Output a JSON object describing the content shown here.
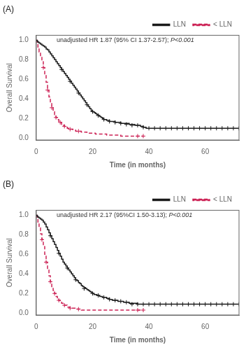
{
  "chart_data": [
    {
      "type": "step",
      "title": "(A)",
      "annotation": [
        "unadjusted HR 1.87 (95% CI 1.37-2.57); ",
        "P<0.001"
      ],
      "xlabel": "Time (in months)",
      "ylabel": "Overall Survival",
      "xlim": [
        0,
        72
      ],
      "ylim": [
        -0.02,
        1.05
      ],
      "xticks": [
        0,
        20,
        40,
        60
      ],
      "yticks": [
        {
          "value": 0,
          "label": "0.0"
        },
        0.2,
        0.4,
        0.6,
        0.8,
        {
          "value": 1,
          "label": "1.0"
        }
      ],
      "grid": false,
      "legend": "upper right",
      "series": [
        {
          "name": "LLN",
          "color": "#1a1a1a",
          "line_style": "solid",
          "x": [
            0,
            0.3,
            0.6,
            1,
            1.5,
            2,
            2.5,
            3,
            3.5,
            4,
            4.5,
            5,
            5.5,
            6,
            6.5,
            7,
            7.5,
            8,
            8.5,
            9,
            9.5,
            10,
            10.5,
            11,
            11.5,
            12,
            12.5,
            13,
            13.5,
            14,
            14.5,
            15,
            15.5,
            16,
            16.5,
            17,
            17.5,
            18,
            18.5,
            19,
            19.5,
            20,
            20.5,
            21,
            21.5,
            22,
            22.5,
            23,
            23.5,
            24,
            25,
            26,
            27,
            28,
            29,
            30,
            31,
            32,
            33,
            34,
            35,
            36,
            37,
            38,
            39,
            40,
            42,
            44,
            46,
            48,
            50,
            52,
            54,
            56,
            58,
            60,
            62,
            64,
            66,
            68,
            70,
            72
          ],
          "values": [
            1.0,
            0.99,
            0.98,
            0.97,
            0.96,
            0.95,
            0.94,
            0.93,
            0.91,
            0.9,
            0.88,
            0.86,
            0.84,
            0.82,
            0.8,
            0.78,
            0.76,
            0.74,
            0.72,
            0.7,
            0.68,
            0.66,
            0.64,
            0.62,
            0.6,
            0.58,
            0.56,
            0.54,
            0.52,
            0.5,
            0.48,
            0.46,
            0.44,
            0.42,
            0.4,
            0.38,
            0.36,
            0.34,
            0.32,
            0.3,
            0.28,
            0.27,
            0.26,
            0.25,
            0.24,
            0.23,
            0.22,
            0.21,
            0.2,
            0.19,
            0.18,
            0.17,
            0.17,
            0.16,
            0.16,
            0.15,
            0.15,
            0.15,
            0.14,
            0.14,
            0.13,
            0.13,
            0.12,
            0.11,
            0.1,
            0.1,
            0.1,
            0.1,
            0.1,
            0.1,
            0.1,
            0.1,
            0.1,
            0.1,
            0.1,
            0.1,
            0.1,
            0.1,
            0.1,
            0.1,
            0.1,
            0.1
          ]
        },
        {
          "name": "< LLN",
          "color": "#cc2255",
          "line_style": "dashed",
          "x": [
            0,
            0.3,
            0.6,
            1,
            1.5,
            2,
            2.5,
            3,
            3.5,
            4,
            4.5,
            5,
            5.5,
            6,
            6.5,
            7,
            7.5,
            8,
            8.5,
            9,
            9.5,
            10,
            11,
            12,
            13,
            14,
            15,
            16,
            17,
            18,
            19,
            20,
            21,
            22,
            23,
            24,
            25,
            26,
            27,
            28,
            29,
            30,
            31,
            32,
            33,
            34,
            35,
            36,
            37,
            38
          ],
          "values": [
            1.0,
            0.97,
            0.93,
            0.88,
            0.83,
            0.78,
            0.72,
            0.65,
            0.57,
            0.49,
            0.42,
            0.36,
            0.31,
            0.27,
            0.24,
            0.21,
            0.19,
            0.17,
            0.16,
            0.14,
            0.13,
            0.12,
            0.1,
            0.09,
            0.08,
            0.07,
            0.07,
            0.06,
            0.06,
            0.05,
            0.05,
            0.05,
            0.04,
            0.04,
            0.04,
            0.04,
            0.03,
            0.03,
            0.03,
            0.03,
            0.03,
            0.02,
            0.02,
            0.02,
            0.02,
            0.02,
            0.02,
            0.02,
            0.02,
            0.02
          ]
        },
        {
          "type": "scatter",
          "marker": "tick",
          "color": "#1a1a1a",
          "x": [
            40,
            42,
            44,
            46,
            48,
            50,
            52,
            54,
            56,
            58,
            60,
            62,
            64,
            66,
            68,
            70,
            72
          ],
          "values": [
            0.1,
            0.1,
            0.1,
            0.1,
            0.1,
            0.1,
            0.1,
            0.1,
            0.1,
            0.1,
            0.1,
            0.1,
            0.1,
            0.1,
            0.1,
            0.1,
            0.1
          ]
        },
        {
          "type": "scatter",
          "marker": "plus",
          "color": "#cc2255",
          "x": [
            36,
            38
          ],
          "values": [
            0.02,
            0.02
          ]
        },
        {
          "type": "scatter",
          "marker": "plus",
          "color": "#1a1a1a",
          "x": [
            9,
            12,
            15,
            18,
            20,
            22,
            24,
            26,
            28,
            30,
            32,
            34,
            36,
            38
          ],
          "values": [
            0.7,
            0.58,
            0.46,
            0.34,
            0.27,
            0.23,
            0.19,
            0.17,
            0.16,
            0.15,
            0.14,
            0.13,
            0.13,
            0.11
          ]
        },
        {
          "type": "scatter",
          "marker": "plus",
          "color": "#cc2255",
          "x": [
            2.5,
            4,
            5.5,
            7,
            8.5,
            10,
            12,
            15
          ],
          "values": [
            0.72,
            0.49,
            0.31,
            0.21,
            0.16,
            0.12,
            0.09,
            0.07
          ]
        }
      ]
    },
    {
      "type": "step",
      "title": "(B)",
      "annotation": [
        "unadjusted HR 2.17 (95%CI 1.50-3.13); ",
        "P<0.001"
      ],
      "xlabel": "Time (in months)",
      "ylabel": "Overall Survival",
      "xlim": [
        0,
        72
      ],
      "ylim": [
        -0.02,
        1.05
      ],
      "xticks": [
        0,
        20,
        40,
        60
      ],
      "yticks": [
        {
          "value": 0,
          "label": "0.0"
        },
        0.2,
        0.4,
        0.6,
        0.8,
        {
          "value": 1,
          "label": "1.0"
        }
      ],
      "grid": false,
      "legend": "upper right",
      "series": [
        {
          "name": "LLN",
          "color": "#1a1a1a",
          "line_style": "solid",
          "x": [
            0,
            0.3,
            0.6,
            1,
            1.5,
            2,
            2.5,
            3,
            3.5,
            4,
            4.5,
            5,
            5.5,
            6,
            6.5,
            7,
            7.5,
            8,
            8.5,
            9,
            9.5,
            10,
            10.5,
            11,
            11.5,
            12,
            12.5,
            13,
            13.5,
            14,
            14.5,
            15,
            15.5,
            16,
            16.5,
            17,
            17.5,
            18,
            18.5,
            19,
            19.5,
            20,
            20.5,
            21,
            21.5,
            22,
            22.5,
            23,
            23.5,
            24,
            25,
            26,
            27,
            28,
            29,
            30,
            31,
            32,
            33,
            34,
            35,
            36,
            37,
            38,
            39,
            40,
            42,
            44,
            46,
            48,
            50,
            52,
            54,
            56,
            58,
            60,
            62,
            64,
            66,
            68,
            70,
            72
          ],
          "values": [
            1.0,
            0.99,
            0.98,
            0.97,
            0.96,
            0.95,
            0.93,
            0.91,
            0.88,
            0.85,
            0.82,
            0.79,
            0.76,
            0.73,
            0.7,
            0.67,
            0.64,
            0.61,
            0.58,
            0.55,
            0.52,
            0.5,
            0.48,
            0.46,
            0.44,
            0.42,
            0.4,
            0.38,
            0.36,
            0.34,
            0.33,
            0.31,
            0.3,
            0.28,
            0.27,
            0.26,
            0.25,
            0.24,
            0.23,
            0.22,
            0.21,
            0.2,
            0.19,
            0.19,
            0.18,
            0.18,
            0.17,
            0.17,
            0.16,
            0.16,
            0.15,
            0.14,
            0.13,
            0.13,
            0.12,
            0.12,
            0.11,
            0.11,
            0.1,
            0.1,
            0.1,
            0.09,
            0.09,
            0.09,
            0.09,
            0.09,
            0.09,
            0.09,
            0.09,
            0.09,
            0.09,
            0.09,
            0.09,
            0.09,
            0.09,
            0.09,
            0.09,
            0.09,
            0.09,
            0.09,
            0.09,
            0.09
          ]
        },
        {
          "name": "< LLN",
          "color": "#cc2255",
          "line_style": "dashed",
          "x": [
            0,
            0.3,
            0.6,
            1,
            1.5,
            2,
            2.5,
            3,
            3.5,
            4,
            4.5,
            5,
            5.5,
            6,
            6.5,
            7,
            7.5,
            8,
            8.5,
            9,
            9.5,
            10,
            11,
            12,
            13,
            14,
            15,
            16,
            17,
            18,
            19,
            20,
            21,
            22,
            23,
            24,
            25,
            26,
            27,
            28,
            29,
            30,
            31,
            32,
            33,
            34,
            35,
            36,
            37,
            38
          ],
          "values": [
            1.0,
            0.97,
            0.93,
            0.87,
            0.81,
            0.75,
            0.68,
            0.6,
            0.52,
            0.44,
            0.38,
            0.32,
            0.27,
            0.23,
            0.2,
            0.17,
            0.15,
            0.13,
            0.11,
            0.1,
            0.09,
            0.08,
            0.06,
            0.05,
            0.05,
            0.04,
            0.04,
            0.03,
            0.03,
            0.03,
            0.03,
            0.03,
            0.03,
            0.03,
            0.03,
            0.03,
            0.03,
            0.03,
            0.03,
            0.03,
            0.03,
            0.03,
            0.03,
            0.03,
            0.03,
            0.03,
            0.03,
            0.03,
            0.03,
            0.03
          ]
        },
        {
          "type": "scatter",
          "marker": "tick",
          "color": "#1a1a1a",
          "x": [
            40,
            42,
            44,
            46,
            48,
            50,
            52,
            54,
            56,
            58,
            60,
            62,
            64,
            66,
            68,
            70,
            72
          ],
          "values": [
            0.09,
            0.09,
            0.09,
            0.09,
            0.09,
            0.09,
            0.09,
            0.09,
            0.09,
            0.09,
            0.09,
            0.09,
            0.09,
            0.09,
            0.09,
            0.09,
            0.09
          ]
        },
        {
          "type": "scatter",
          "marker": "plus",
          "color": "#cc2255",
          "x": [
            36,
            38
          ],
          "values": [
            0.03,
            0.03
          ]
        },
        {
          "type": "scatter",
          "marker": "plus",
          "color": "#1a1a1a",
          "x": [
            5,
            8,
            11,
            14,
            17,
            20,
            22,
            24,
            26,
            28,
            30,
            32,
            34,
            36,
            38
          ],
          "values": [
            0.79,
            0.61,
            0.46,
            0.34,
            0.25,
            0.2,
            0.18,
            0.16,
            0.14,
            0.13,
            0.12,
            0.11,
            0.09,
            0.09,
            0.09
          ]
        },
        {
          "type": "scatter",
          "marker": "plus",
          "color": "#cc2255",
          "x": [
            2,
            3.5,
            5,
            6.5,
            8,
            10,
            12,
            15
          ],
          "values": [
            0.75,
            0.52,
            0.32,
            0.2,
            0.13,
            0.08,
            0.05,
            0.04
          ]
        }
      ]
    }
  ]
}
